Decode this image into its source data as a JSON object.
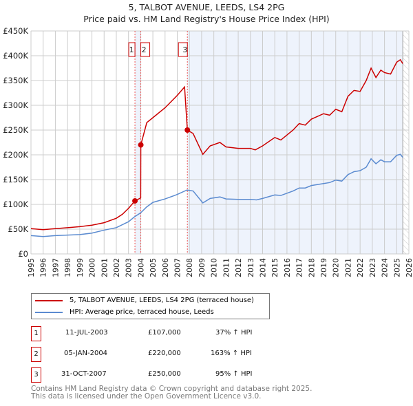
{
  "chart_data": {
    "type": "line",
    "title": "5, TALBOT AVENUE, LEEDS, LS4 2PG",
    "subtitle": "Price paid vs. HM Land Registry's House Price Index (HPI)",
    "xlim": [
      1995,
      2026
    ],
    "ylim": [
      0,
      450000
    ],
    "yticks": [
      0,
      50000,
      100000,
      150000,
      200000,
      250000,
      300000,
      350000,
      400000,
      450000
    ],
    "ytick_labels": [
      "£0",
      "£50K",
      "£100K",
      "£150K",
      "£200K",
      "£250K",
      "£300K",
      "£350K",
      "£400K",
      "£450K"
    ],
    "xticks": [
      "1995",
      "1996",
      "1997",
      "1998",
      "1999",
      "2000",
      "2001",
      "2002",
      "2003",
      "2004",
      "2005",
      "2006",
      "2007",
      "2008",
      "2009",
      "2010",
      "2011",
      "2012",
      "2013",
      "2014",
      "2015",
      "2016",
      "2017",
      "2018",
      "2019",
      "2020",
      "2021",
      "2022",
      "2023",
      "2024",
      "2025",
      "2026"
    ],
    "grid": true,
    "series": [
      {
        "name": "5, TALBOT AVENUE, LEEDS, LS4 2PG (terraced house)",
        "color": "#cc0000",
        "x": [
          1995,
          1996,
          1997,
          1998,
          1999,
          2000,
          2001,
          2002,
          2002.5,
          2003,
          2003.53,
          2004,
          2004.01,
          2004.5,
          2005,
          2006,
          2007,
          2007.6,
          2007.83,
          2008.3,
          2009.1,
          2009.7,
          2010.5,
          2011,
          2012,
          2013,
          2013.4,
          2014,
          2015,
          2015.5,
          2016.5,
          2017,
          2017.5,
          2018,
          2019,
          2019.5,
          2020,
          2020.5,
          2021,
          2021.5,
          2022,
          2022.5,
          2022.9,
          2023.3,
          2023.7,
          2024,
          2024.5,
          2025,
          2025.3,
          2025.5
        ],
        "y": [
          51000,
          49000,
          51000,
          53000,
          55000,
          58000,
          63000,
          72000,
          80000,
          92000,
          107000,
          113000,
          220000,
          265000,
          275000,
          295000,
          320000,
          337000,
          250000,
          243000,
          201000,
          218000,
          225000,
          216000,
          213000,
          213000,
          210000,
          218000,
          235000,
          230000,
          250000,
          263000,
          260000,
          272000,
          283000,
          280000,
          292000,
          287000,
          318000,
          330000,
          328000,
          350000,
          375000,
          356000,
          371000,
          366000,
          363000,
          387000,
          392000,
          384000
        ]
      },
      {
        "name": "HPI: Average price, terraced house, Leeds",
        "color": "#5b8bd0",
        "x": [
          1995,
          1996,
          1997,
          1998,
          1999,
          2000,
          2001,
          2002,
          2003,
          2003.5,
          2004,
          2004.5,
          2005,
          2006,
          2007,
          2007.8,
          2008.3,
          2009.1,
          2009.7,
          2010.5,
          2011,
          2012,
          2013,
          2013.5,
          2014,
          2015,
          2015.5,
          2016.5,
          2017,
          2017.5,
          2018,
          2019,
          2019.5,
          2020,
          2020.5,
          2021,
          2021.5,
          2022,
          2022.5,
          2022.9,
          2023.3,
          2023.7,
          2024,
          2024.5,
          2025,
          2025.3,
          2025.5
        ],
        "y": [
          37000,
          35000,
          37000,
          38000,
          39000,
          42000,
          48000,
          53000,
          65000,
          75000,
          83000,
          95000,
          104000,
          111000,
          120000,
          129000,
          127000,
          103000,
          112000,
          115000,
          111000,
          110000,
          110000,
          109000,
          112000,
          119000,
          118000,
          127000,
          133000,
          133000,
          138000,
          142000,
          144000,
          149000,
          147000,
          160000,
          166000,
          168000,
          175000,
          192000,
          182000,
          190000,
          186000,
          186000,
          199000,
          201000,
          195000
        ]
      }
    ],
    "sales": [
      {
        "label": "1",
        "date": "11-JUL-2003",
        "x": 2003.53,
        "price": 107000,
        "price_text": "£107,000",
        "hpi": "37% ↑ HPI"
      },
      {
        "label": "2",
        "date": "05-JAN-2004",
        "x": 2004.01,
        "price": 220000,
        "price_text": "£220,000",
        "hpi": "163% ↑ HPI"
      },
      {
        "label": "3",
        "date": "31-OCT-2007",
        "x": 2007.83,
        "price": 250000,
        "price_text": "£250,000",
        "hpi": "95% ↑ HPI"
      }
    ],
    "shaded_ranges": [
      [
        2003.53,
        2004.01
      ],
      [
        2007.83,
        2025.5
      ]
    ],
    "forecast_hatch_from": 2025.5,
    "legend_placement": "below"
  },
  "footer": [
    "Contains HM Land Registry data © Crown copyright and database right 2025.",
    "This data is licensed under the Open Government Licence v3.0."
  ]
}
